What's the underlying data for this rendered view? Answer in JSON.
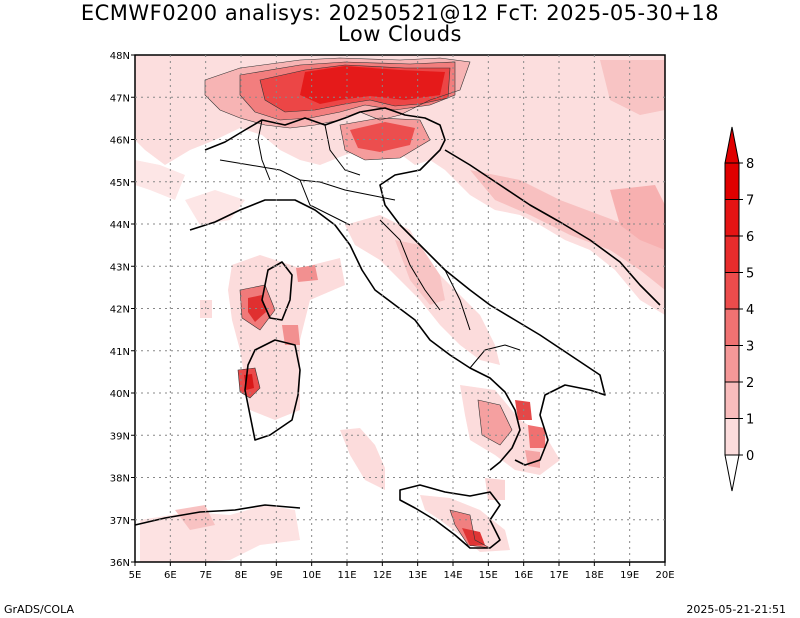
{
  "title": {
    "line1": "ECMWF0200 analisys: 20250521@12 FcT: 2025-05-30+18",
    "line2": "Low Clouds"
  },
  "footer": {
    "left": "GrADS/COLA",
    "right": "2025-05-21-21:51"
  },
  "map": {
    "lon_labels": [
      "5E",
      "6E",
      "7E",
      "8E",
      "9E",
      "10E",
      "11E",
      "12E",
      "13E",
      "14E",
      "15E",
      "16E",
      "17E",
      "18E",
      "19E",
      "20E"
    ],
    "lat_labels": [
      "36N",
      "37N",
      "38N",
      "39N",
      "40N",
      "41N",
      "42N",
      "43N",
      "44N",
      "45N",
      "46N",
      "47N",
      "48N"
    ],
    "grid": "dotted"
  },
  "colorbar": {
    "labels": [
      "0",
      "1",
      "2",
      "3",
      "4",
      "5",
      "6",
      "7",
      "8"
    ],
    "colors": [
      "#ffffff",
      "#fcdcdc",
      "#f9bcbc",
      "#f59898",
      "#f07272",
      "#ec4c4c",
      "#e82c2c",
      "#e51414",
      "#e00000"
    ]
  },
  "colors": {
    "light": "#fbdcdc",
    "mid": "#f59a9a",
    "strong": "#ec3a3a",
    "max": "#e51414"
  }
}
